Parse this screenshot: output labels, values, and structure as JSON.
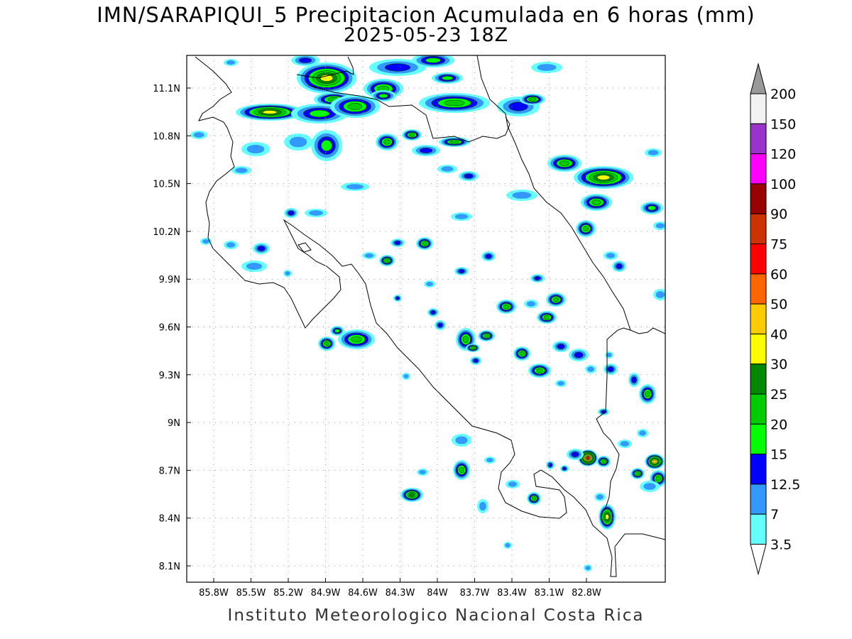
{
  "title": {
    "line1": "IMN/SARAPIQUI_5 Precipitacion Acumulada en 6 horas (mm)",
    "line2": "2025-05-23 18Z"
  },
  "footer": "Instituto Meteorologico Nacional Costa Rica",
  "map": {
    "lon_ticks": [
      "85.8W",
      "85.5W",
      "85.2W",
      "84.9W",
      "84.6W",
      "84.3W",
      "84W",
      "83.7W",
      "83.4W",
      "83.1W",
      "82.8W"
    ],
    "lat_ticks": [
      "11.1N",
      "10.8N",
      "10.5N",
      "10.2N",
      "9.9N",
      "9.6N",
      "9.3N",
      "9N",
      "8.7N",
      "8.4N",
      "8.1N"
    ],
    "lon_range": [
      -85.97,
      -82.67
    ],
    "lat_range": [
      8.02,
      11.3
    ]
  },
  "legend": {
    "levels": [
      "3.5",
      "7",
      "12.5",
      "15",
      "20",
      "25",
      "30",
      "40",
      "50",
      "60",
      "75",
      "90",
      "100",
      "120",
      "150",
      "200"
    ],
    "colors": [
      "#66ffff",
      "#3399ff",
      "#0000ff",
      "#00ff00",
      "#00cc00",
      "#008800",
      "#ffff00",
      "#ffcc00",
      "#ff6600",
      "#ff0000",
      "#cc3300",
      "#990000",
      "#ff00ff",
      "#9933cc",
      "#f2f2f2",
      "#999999"
    ]
  }
}
